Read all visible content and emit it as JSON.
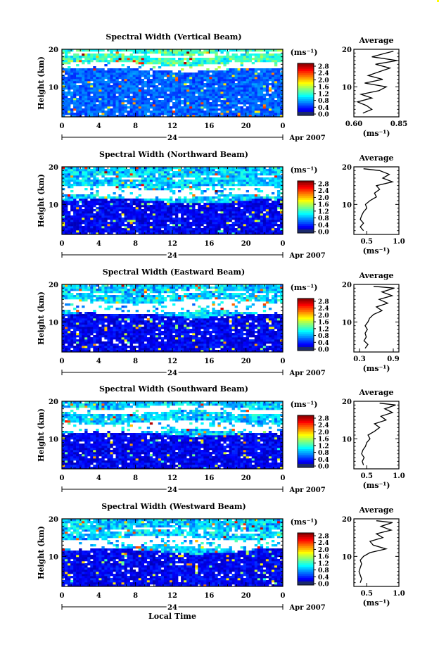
{
  "figure": {
    "date_label": "Apr 2007",
    "day_label": "24",
    "xlabel": "Local Time",
    "ylabel": "Height (km)",
    "colorbar_unit": "(ms⁻¹)",
    "colorbar_ticks": [
      "2.8",
      "2.4",
      "2.0",
      "1.6",
      "1.2",
      "0.8",
      "0.4",
      "0.0"
    ],
    "profile_title": "Average",
    "profile_unit": "(ms⁻¹)"
  },
  "chart_data": [
    {
      "type": "heatmap",
      "title": "Spectral Width (Vertical Beam)",
      "x_ticks": [
        "0",
        "4",
        "8",
        "12",
        "16",
        "20",
        "0"
      ],
      "y_ticks": [
        "20",
        "10"
      ],
      "xlim": [
        0,
        24
      ],
      "ylim": [
        2,
        20
      ],
      "colorbar_range": [
        0.0,
        2.8
      ],
      "gap_bands_km": [
        [
          14.6,
          16.2
        ],
        [
          18.2,
          19.0
        ]
      ],
      "base_level_ms": 0.62,
      "high_top_km": 15.0,
      "profile": {
        "type": "line",
        "xlim": [
          0.6,
          0.85
        ],
        "x_ticks": [
          "0.60",
          "0.85"
        ],
        "y_ticks": [
          "20",
          "10"
        ],
        "height_km": [
          3,
          4,
          5,
          6,
          7,
          8,
          9,
          10,
          11,
          12,
          13,
          14,
          15,
          16,
          17,
          18,
          19,
          19.5
        ],
        "width_ms": [
          0.65,
          0.7,
          0.67,
          0.62,
          0.7,
          0.64,
          0.74,
          0.78,
          0.66,
          0.76,
          0.68,
          0.74,
          0.8,
          0.72,
          0.84,
          0.7,
          0.78,
          0.82
        ]
      }
    },
    {
      "type": "heatmap",
      "title": "Spectral Width (Northward Beam)",
      "x_ticks": [
        "0",
        "4",
        "8",
        "12",
        "16",
        "20",
        "0"
      ],
      "y_ticks": [
        "20",
        "10"
      ],
      "xlim": [
        0,
        24
      ],
      "ylim": [
        2,
        20
      ],
      "colorbar_range": [
        0.0,
        2.8
      ],
      "gap_bands_km": [
        [
          12.0,
          14.6
        ],
        [
          17.0,
          17.4
        ]
      ],
      "base_level_ms": 0.32,
      "high_top_km": 11.0,
      "profile": {
        "type": "line",
        "xlim": [
          0.3,
          1.0
        ],
        "x_ticks": [
          "0.5",
          "1.0"
        ],
        "y_ticks": [
          "20",
          "10"
        ],
        "height_km": [
          3,
          4,
          5,
          6,
          7,
          8,
          9,
          10,
          11,
          12,
          13,
          14,
          15,
          16,
          17,
          18,
          19,
          19.5
        ],
        "width_ms": [
          0.45,
          0.4,
          0.45,
          0.4,
          0.42,
          0.45,
          0.5,
          0.48,
          0.55,
          0.65,
          0.62,
          0.7,
          0.65,
          0.9,
          0.75,
          0.85,
          0.7,
          0.45
        ]
      }
    },
    {
      "type": "heatmap",
      "title": "Spectral Width (Eastward Beam)",
      "x_ticks": [
        "0",
        "4",
        "8",
        "12",
        "16",
        "20",
        "0"
      ],
      "y_ticks": [
        "20",
        "10"
      ],
      "xlim": [
        0,
        24
      ],
      "ylim": [
        2,
        20
      ],
      "colorbar_range": [
        0.0,
        2.8
      ],
      "gap_bands_km": [
        [
          12.5,
          15.5
        ],
        [
          17.5,
          18.0
        ]
      ],
      "base_level_ms": 0.32,
      "high_top_km": 12.0,
      "profile": {
        "type": "line",
        "xlim": [
          0.2,
          1.0
        ],
        "x_ticks": [
          "0.3",
          "0.9"
        ],
        "y_ticks": [
          "20",
          "10"
        ],
        "height_km": [
          3,
          4,
          5,
          6,
          7,
          8,
          9,
          10,
          11,
          12,
          13,
          14,
          15,
          16,
          17,
          18,
          19,
          19.5
        ],
        "width_ms": [
          0.4,
          0.45,
          0.38,
          0.42,
          0.4,
          0.44,
          0.4,
          0.45,
          0.48,
          0.55,
          0.7,
          0.6,
          0.8,
          0.65,
          0.88,
          0.7,
          0.92,
          0.55
        ]
      }
    },
    {
      "type": "heatmap",
      "title": "Spectral Width (Southward Beam)",
      "x_ticks": [
        "0",
        "4",
        "8",
        "12",
        "16",
        "20",
        "0"
      ],
      "y_ticks": [
        "20",
        "10"
      ],
      "xlim": [
        0,
        24
      ],
      "ylim": [
        2,
        20
      ],
      "colorbar_range": [
        0.0,
        2.8
      ],
      "gap_bands_km": [
        [
          12.0,
          14.5
        ],
        [
          17.0,
          18.5
        ]
      ],
      "base_level_ms": 0.32,
      "high_top_km": 11.5,
      "profile": {
        "type": "line",
        "xlim": [
          0.3,
          1.0
        ],
        "x_ticks": [
          "0.5",
          "1.0"
        ],
        "y_ticks": [
          "20",
          "10"
        ],
        "height_km": [
          3,
          4,
          5,
          6,
          7,
          8,
          9,
          10,
          11,
          12,
          13,
          14,
          15,
          16,
          17,
          18,
          19,
          19.5
        ],
        "width_ms": [
          0.45,
          0.43,
          0.46,
          0.42,
          0.44,
          0.48,
          0.5,
          0.55,
          0.52,
          0.62,
          0.7,
          0.62,
          0.8,
          0.72,
          0.9,
          0.78,
          0.95,
          0.7
        ]
      }
    },
    {
      "type": "heatmap",
      "title": "Spectral Width (Westward Beam)",
      "x_ticks": [
        "0",
        "4",
        "8",
        "12",
        "16",
        "20",
        "0"
      ],
      "y_ticks": [
        "20",
        "10"
      ],
      "xlim": [
        0,
        24
      ],
      "ylim": [
        2,
        20
      ],
      "colorbar_range": [
        0.0,
        2.8
      ],
      "gap_bands_km": [
        [
          12.4,
          15.0
        ],
        [
          16.8,
          17.2
        ]
      ],
      "base_level_ms": 0.32,
      "high_top_km": 11.5,
      "profile": {
        "type": "line",
        "xlim": [
          0.3,
          1.0
        ],
        "x_ticks": [
          "0.5",
          "1.0"
        ],
        "y_ticks": [
          "20",
          "10"
        ],
        "height_km": [
          3,
          4,
          5,
          6,
          7,
          8,
          9,
          10,
          11,
          12,
          13,
          14,
          15,
          16,
          17,
          18,
          19,
          19.5
        ],
        "width_ms": [
          0.4,
          0.42,
          0.4,
          0.38,
          0.4,
          0.42,
          0.4,
          0.45,
          0.55,
          0.8,
          0.6,
          0.55,
          0.75,
          0.65,
          0.88,
          0.72,
          0.9,
          0.65
        ]
      }
    }
  ]
}
